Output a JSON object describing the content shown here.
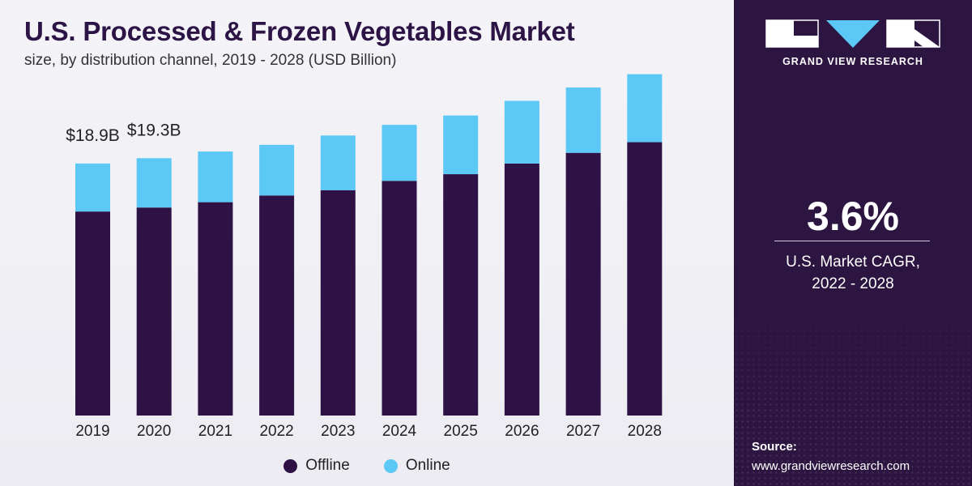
{
  "header": {
    "title": "U.S. Processed & Frozen Vegetables Market",
    "subtitle": "size, by distribution channel, 2019 - 2028 (USD Billion)"
  },
  "brand": {
    "name": "GRAND VIEW RESEARCH",
    "logo_icon": "gvr-logo-icon",
    "accent_color": "#5bc8f5",
    "panel_color": "#2c1540"
  },
  "cagr": {
    "value": "3.6%",
    "label_line1": "U.S. Market CAGR,",
    "label_line2": "2022 - 2028"
  },
  "source": {
    "title": "Source:",
    "url": "www.grandviewresearch.com"
  },
  "legend": [
    {
      "label": "Offline",
      "color": "#2e1245"
    },
    {
      "label": "Online",
      "color": "#5bc8f5"
    }
  ],
  "chart_data": {
    "type": "bar",
    "stacked": true,
    "title": "U.S. Processed & Frozen Vegetables Market",
    "subtitle": "size, by distribution channel, 2019 - 2028 (USD Billion)",
    "categories": [
      "2019",
      "2020",
      "2021",
      "2022",
      "2023",
      "2024",
      "2025",
      "2026",
      "2027",
      "2028"
    ],
    "series": [
      {
        "name": "Offline",
        "color": "#2e1245",
        "values": [
          15.3,
          15.6,
          16.0,
          16.5,
          16.9,
          17.6,
          18.1,
          18.9,
          19.7,
          20.5
        ]
      },
      {
        "name": "Online",
        "color": "#5bc8f5",
        "values": [
          3.6,
          3.7,
          3.8,
          3.8,
          4.1,
          4.2,
          4.4,
          4.7,
          4.9,
          5.1
        ]
      }
    ],
    "data_labels": [
      {
        "category": "2019",
        "text": "$18.9B"
      },
      {
        "category": "2020",
        "text": "$19.3B"
      }
    ],
    "ylim": [
      0,
      26
    ],
    "grid": false,
    "y_axis_visible": false,
    "legend_position": "bottom-center"
  }
}
